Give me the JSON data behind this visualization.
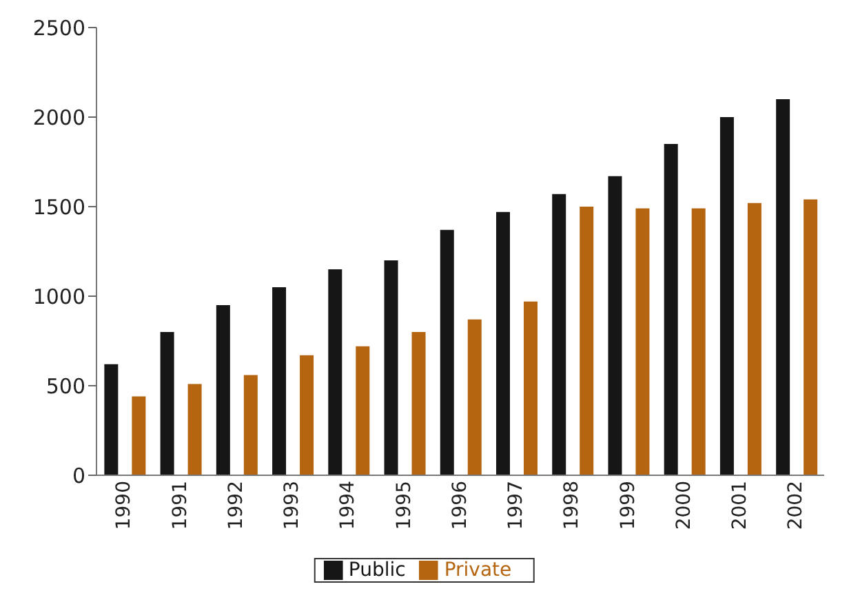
{
  "chart_data": {
    "type": "bar",
    "categories": [
      "1990",
      "1991",
      "1992",
      "1993",
      "1994",
      "1995",
      "1996",
      "1997",
      "1998",
      "1999",
      "2000",
      "2001",
      "2002"
    ],
    "series": [
      {
        "name": "Public",
        "color": "#161616",
        "values": [
          620,
          800,
          950,
          1050,
          1150,
          1200,
          1370,
          1470,
          1570,
          1670,
          1850,
          2000,
          2100
        ]
      },
      {
        "name": "Private",
        "color": "#b5650f",
        "values": [
          440,
          510,
          560,
          670,
          720,
          800,
          870,
          970,
          1500,
          1490,
          1490,
          1520,
          1540
        ]
      }
    ],
    "ylim": [
      0,
      2500
    ],
    "yticks": [
      0,
      500,
      1000,
      1500,
      2000,
      2500
    ],
    "grid": false,
    "legend": "bottom"
  }
}
